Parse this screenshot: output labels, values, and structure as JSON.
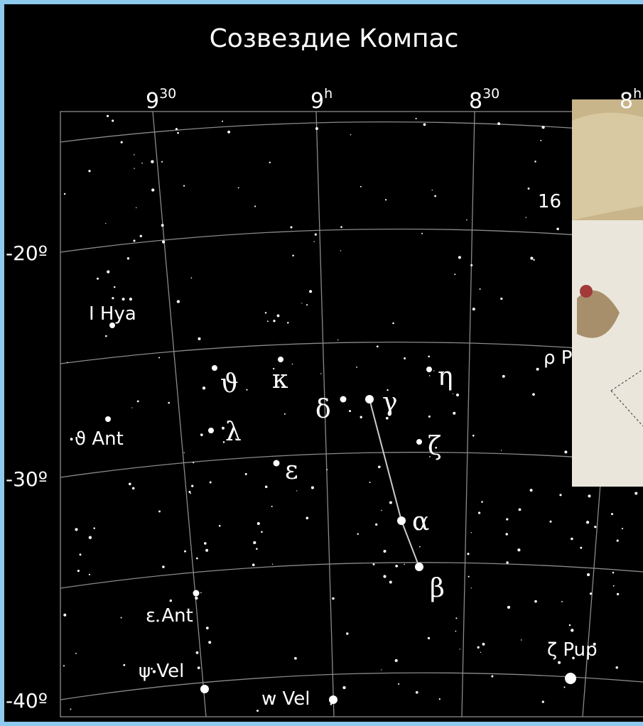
{
  "title": "Созвездие Компас",
  "ra_labels": [
    {
      "main": "9",
      "sup": "30"
    },
    {
      "main": "9",
      "sup": "h"
    },
    {
      "main": "8",
      "sup": "30"
    },
    {
      "main": "8",
      "sup": "h"
    }
  ],
  "dec_labels": [
    "-20º",
    "-30º",
    "-40º"
  ],
  "star_labels": [
    "I Hya",
    "ϑ Ant",
    "ε Ant",
    "ψ Vel",
    "w Vel",
    "ζ Pup",
    "ϑ",
    "κ",
    "δ",
    "γ",
    "η",
    "λ",
    "ζ",
    "ε",
    "α",
    "β",
    "ρ P",
    "16"
  ]
}
